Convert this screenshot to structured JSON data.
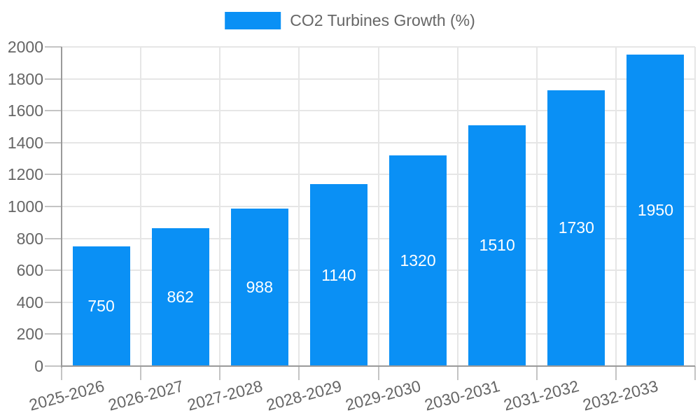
{
  "chart_data": {
    "type": "bar",
    "title": "",
    "series_name": "CO2 Turbines Growth (%)",
    "legend_position": "top",
    "categories": [
      "2025-2026",
      "2026-2027",
      "2027-2028",
      "2028-2029",
      "2029-2030",
      "2030-2031",
      "2031-2032",
      "2032-2033"
    ],
    "values": [
      750,
      862,
      988,
      1140,
      1320,
      1510,
      1730,
      1950
    ],
    "bar_labels": [
      "750",
      "862",
      "988",
      "1140",
      "1320",
      "1510",
      "1730",
      "1950"
    ],
    "xlabel": "",
    "ylabel": "",
    "ylim": [
      0,
      2000
    ],
    "ytick_step": 200,
    "yticks": [
      0,
      200,
      400,
      600,
      800,
      1000,
      1200,
      1400,
      1600,
      1800,
      2000
    ],
    "grid": true,
    "colors": {
      "bar": "#0a90f5",
      "bar_label": "#ffffff",
      "tick_label": "#666666",
      "legend_text": "#666666",
      "axis_line": "#9a9a9a",
      "tick_mark": "#c4c4c4",
      "gridline": "#e6e6e6",
      "background": "#ffffff"
    }
  }
}
